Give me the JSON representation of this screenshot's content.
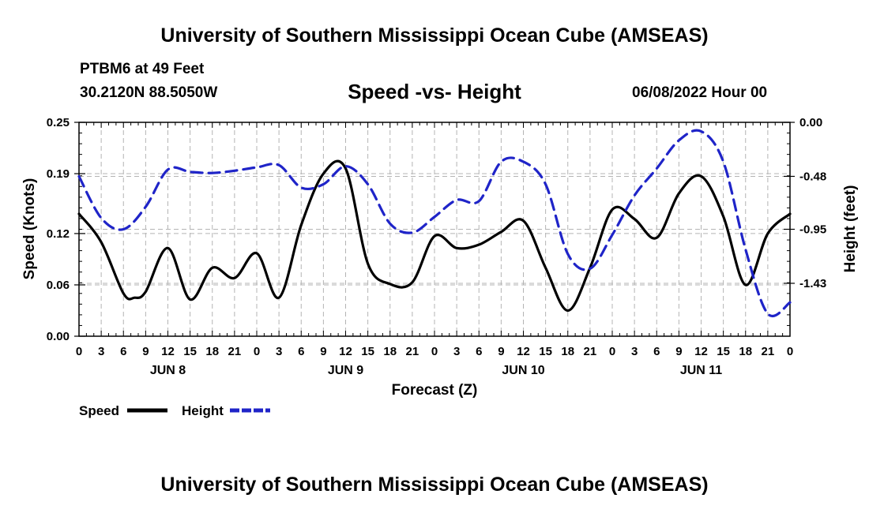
{
  "header": {
    "title": "University of Southern Mississippi Ocean Cube (AMSEAS)",
    "station": "PTBM6 at 49 Feet",
    "coords": "30.2120N  88.5050W",
    "chart_title": "Speed -vs- Height",
    "datetime": "06/08/2022 Hour 00"
  },
  "footer": {
    "title": "University of Southern Mississippi Ocean Cube (AMSEAS)"
  },
  "colors": {
    "speed": "#000000",
    "height": "#1f24c8",
    "grid": "#b4b4b4"
  },
  "chart_data": {
    "type": "line",
    "title": "Speed -vs- Height",
    "xlabel": "Forecast (Z)",
    "ylabel": "Speed (Knots)",
    "y2label": "Height (feet)",
    "xlim": [
      0,
      96
    ],
    "ylim": [
      0,
      0.25
    ],
    "y2lim": [
      -1.9,
      0
    ],
    "x_ticks": [
      0,
      3,
      6,
      9,
      12,
      15,
      18,
      21,
      24,
      27,
      30,
      33,
      36,
      39,
      42,
      45,
      48,
      51,
      54,
      57,
      60,
      63,
      66,
      69,
      72,
      75,
      78,
      81,
      84,
      87,
      90,
      93,
      96
    ],
    "x_tick_labels": [
      "0",
      "3",
      "6",
      "9",
      "12",
      "15",
      "18",
      "21",
      "0",
      "3",
      "6",
      "9",
      "12",
      "15",
      "18",
      "21",
      "0",
      "3",
      "6",
      "9",
      "12",
      "15",
      "18",
      "21",
      "0",
      "3",
      "6",
      "9",
      "12",
      "15",
      "18",
      "21",
      "0"
    ],
    "day_labels": [
      {
        "x": 12,
        "label": "JUN 8"
      },
      {
        "x": 36,
        "label": "JUN 9"
      },
      {
        "x": 60,
        "label": "JUN 10"
      },
      {
        "x": 84,
        "label": "JUN 11"
      }
    ],
    "y_ticks": [
      0.0,
      0.06,
      0.12,
      0.19,
      0.25
    ],
    "y_tick_labels": [
      "0.00",
      "0.06",
      "0.12",
      "0.19",
      "0.25"
    ],
    "y2_ticks": [
      0.0,
      -0.48,
      -0.95,
      -1.43
    ],
    "y2_tick_labels": [
      "0.00",
      "-0.48",
      "-0.95",
      "-1.43"
    ],
    "legend": [
      {
        "name": "Speed",
        "style": "solid"
      },
      {
        "name": "Height",
        "style": "dashed"
      }
    ],
    "series": [
      {
        "name": "Speed",
        "axis": "left",
        "x": [
          0,
          3,
          6,
          7.5,
          9,
          12,
          15,
          18,
          21,
          24,
          27,
          30,
          33,
          36,
          39,
          42,
          45,
          48,
          51,
          54,
          57,
          60,
          63,
          66,
          69,
          72,
          75,
          78,
          81,
          84,
          87,
          90,
          93,
          96
        ],
        "values": [
          0.143,
          0.11,
          0.05,
          0.045,
          0.052,
          0.103,
          0.043,
          0.08,
          0.068,
          0.097,
          0.045,
          0.13,
          0.19,
          0.196,
          0.085,
          0.061,
          0.063,
          0.117,
          0.103,
          0.107,
          0.122,
          0.135,
          0.08,
          0.03,
          0.08,
          0.148,
          0.137,
          0.115,
          0.167,
          0.187,
          0.14,
          0.06,
          0.12,
          0.143
        ]
      },
      {
        "name": "Height",
        "axis": "right",
        "x": [
          0,
          3,
          6,
          9,
          12,
          15,
          18,
          21,
          24,
          27,
          30,
          33,
          36,
          39,
          42,
          45,
          48,
          51,
          54,
          57,
          60,
          63,
          66,
          69,
          72,
          75,
          78,
          81,
          84,
          87,
          90,
          93,
          96
        ],
        "values": [
          -0.48,
          -0.85,
          -0.95,
          -0.75,
          -0.42,
          -0.44,
          -0.45,
          -0.43,
          -0.4,
          -0.38,
          -0.58,
          -0.55,
          -0.39,
          -0.55,
          -0.9,
          -0.98,
          -0.84,
          -0.69,
          -0.7,
          -0.35,
          -0.35,
          -0.55,
          -1.17,
          -1.3,
          -1.0,
          -0.65,
          -0.41,
          -0.16,
          -0.08,
          -0.35,
          -1.13,
          -1.7,
          -1.6
        ]
      }
    ]
  }
}
